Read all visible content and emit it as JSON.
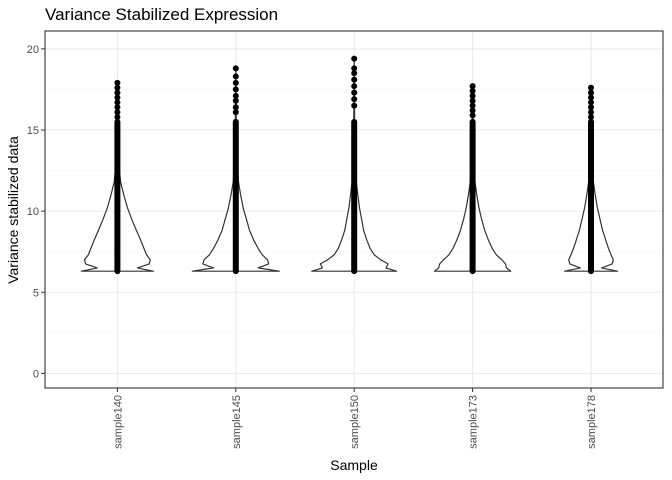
{
  "chart_data": {
    "type": "violin",
    "title": "Variance Stabilized Expression",
    "xlabel": "Sample",
    "ylabel": "Variance stabilized data",
    "categories": [
      "sample140",
      "sample145",
      "sample150",
      "sample173",
      "sample178"
    ],
    "ylim": [
      -0.9,
      21.1
    ],
    "yticks": [
      0,
      5,
      10,
      15,
      20
    ],
    "grid": true,
    "theme": "bw",
    "colors": {
      "line": "#333333",
      "point": "#000000",
      "grid_major": "#ebebeb",
      "grid_minor": "#f5f5f5",
      "panel_border": "#333333"
    },
    "series": [
      {
        "sample": "sample140",
        "min": 6.3,
        "max": 17.9,
        "profile": [
          [
            6.3,
            0.68
          ],
          [
            6.5,
            0.38
          ],
          [
            6.75,
            0.6
          ],
          [
            7.0,
            0.62
          ],
          [
            7.3,
            0.55
          ],
          [
            7.7,
            0.5
          ],
          [
            8.2,
            0.44
          ],
          [
            8.8,
            0.36
          ],
          [
            9.5,
            0.27
          ],
          [
            10.2,
            0.19
          ],
          [
            11.0,
            0.12
          ],
          [
            11.8,
            0.06
          ],
          [
            12.8,
            0.03
          ],
          [
            14.0,
            0.015
          ],
          [
            16.0,
            0.008
          ],
          [
            17.9,
            0.0
          ]
        ],
        "outlier_points": [
          17.9,
          17.6,
          17.3,
          17.0,
          16.7,
          16.4,
          16.1,
          15.8
        ]
      },
      {
        "sample": "sample145",
        "min": 6.3,
        "max": 18.8,
        "profile": [
          [
            6.3,
            0.82
          ],
          [
            6.5,
            0.42
          ],
          [
            6.75,
            0.62
          ],
          [
            7.0,
            0.6
          ],
          [
            7.3,
            0.5
          ],
          [
            7.7,
            0.42
          ],
          [
            8.2,
            0.34
          ],
          [
            8.8,
            0.26
          ],
          [
            9.5,
            0.2
          ],
          [
            10.2,
            0.14
          ],
          [
            11.0,
            0.09
          ],
          [
            11.8,
            0.05
          ],
          [
            12.8,
            0.03
          ],
          [
            14.0,
            0.015
          ],
          [
            16.0,
            0.008
          ],
          [
            18.8,
            0.0
          ]
        ],
        "outlier_points": [
          18.8,
          18.3,
          17.9,
          17.5,
          17.1,
          16.8,
          16.4,
          16.1
        ]
      },
      {
        "sample": "sample150",
        "min": 6.3,
        "max": 19.4,
        "profile": [
          [
            6.3,
            0.8
          ],
          [
            6.5,
            0.6
          ],
          [
            6.75,
            0.64
          ],
          [
            7.0,
            0.5
          ],
          [
            7.3,
            0.38
          ],
          [
            7.7,
            0.3
          ],
          [
            8.2,
            0.24
          ],
          [
            8.8,
            0.18
          ],
          [
            9.5,
            0.14
          ],
          [
            10.2,
            0.1
          ],
          [
            11.0,
            0.07
          ],
          [
            11.8,
            0.04
          ],
          [
            12.8,
            0.025
          ],
          [
            14.0,
            0.012
          ],
          [
            16.0,
            0.007
          ],
          [
            19.4,
            0.0
          ]
        ],
        "outlier_points": [
          19.4,
          18.8,
          18.5,
          18.1,
          17.7,
          17.3,
          16.9,
          16.5
        ]
      },
      {
        "sample": "sample173",
        "min": 6.3,
        "max": 17.7,
        "profile": [
          [
            6.3,
            0.72
          ],
          [
            6.5,
            0.64
          ],
          [
            6.75,
            0.62
          ],
          [
            7.0,
            0.55
          ],
          [
            7.3,
            0.45
          ],
          [
            7.7,
            0.37
          ],
          [
            8.2,
            0.3
          ],
          [
            8.8,
            0.23
          ],
          [
            9.5,
            0.17
          ],
          [
            10.2,
            0.12
          ],
          [
            11.0,
            0.08
          ],
          [
            11.8,
            0.045
          ],
          [
            12.8,
            0.025
          ],
          [
            14.0,
            0.012
          ],
          [
            16.0,
            0.007
          ],
          [
            17.7,
            0.0
          ]
        ],
        "outlier_points": [
          17.7,
          17.4,
          17.1,
          16.8,
          16.5,
          16.2,
          15.9
        ]
      },
      {
        "sample": "sample178",
        "min": 6.3,
        "max": 17.6,
        "profile": [
          [
            6.3,
            0.5
          ],
          [
            6.5,
            0.2
          ],
          [
            6.75,
            0.4
          ],
          [
            7.0,
            0.42
          ],
          [
            7.3,
            0.38
          ],
          [
            7.7,
            0.33
          ],
          [
            8.2,
            0.28
          ],
          [
            8.8,
            0.22
          ],
          [
            9.5,
            0.17
          ],
          [
            10.2,
            0.12
          ],
          [
            11.0,
            0.08
          ],
          [
            11.8,
            0.045
          ],
          [
            12.8,
            0.025
          ],
          [
            14.0,
            0.012
          ],
          [
            16.0,
            0.007
          ],
          [
            17.6,
            0.0
          ]
        ],
        "outlier_points": [
          17.6,
          17.3,
          17.0,
          16.7,
          16.4,
          16.1,
          15.8
        ]
      }
    ]
  }
}
